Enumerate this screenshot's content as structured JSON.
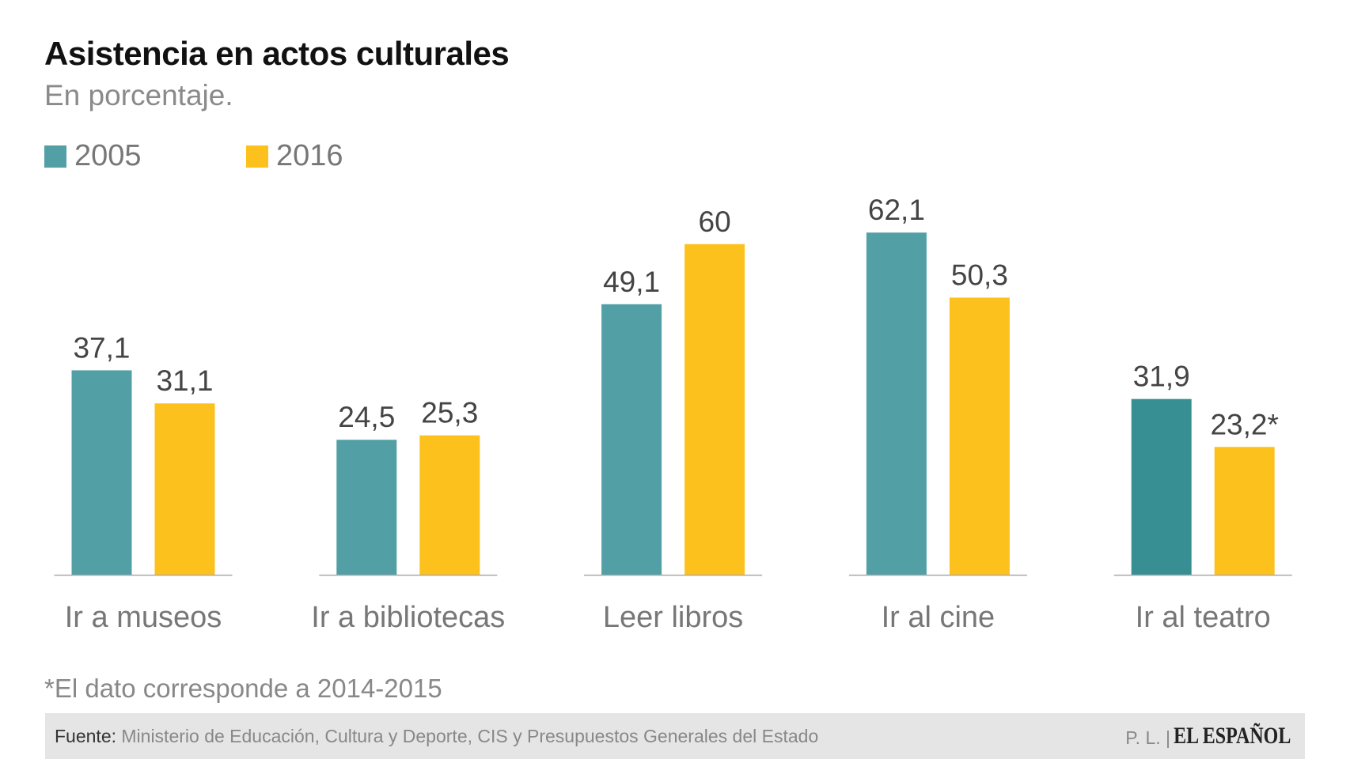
{
  "title": "Asistencia en actos culturales",
  "subtitle": "En porcentaje.",
  "footnote": "*El dato corresponde a 2014-2015",
  "footer": {
    "source_label": "Fuente:",
    "source_text": "Ministerio de Educación, Cultura y Deporte, CIS y Presupuestos Generales del Estado",
    "credit": "P. L. |",
    "logo": "EL ESPAÑOL"
  },
  "colors": {
    "series_2005": "#52a0a6",
    "series_2005_highlight": "#378f94",
    "series_2016": "#fdc11e"
  },
  "chart_data": {
    "type": "bar",
    "title": "Asistencia en actos culturales",
    "subtitle": "En porcentaje.",
    "categories": [
      "Ir a museos",
      "Ir a bibliotecas",
      "Leer libros",
      "Ir al cine",
      "Ir al teatro"
    ],
    "series": [
      {
        "name": "2005",
        "values": [
          37.1,
          24.5,
          49.1,
          62.1,
          31.9
        ],
        "labels": [
          "37,1",
          "24,5",
          "49,1",
          "62,1",
          "31,9"
        ]
      },
      {
        "name": "2016",
        "values": [
          31.1,
          25.3,
          60,
          50.3,
          23.2
        ],
        "labels": [
          "31,1",
          "25,3",
          "60",
          "50,3",
          "23,2*"
        ]
      }
    ],
    "legend": "top-left",
    "grid": false,
    "ylim": [
      0,
      65
    ]
  }
}
